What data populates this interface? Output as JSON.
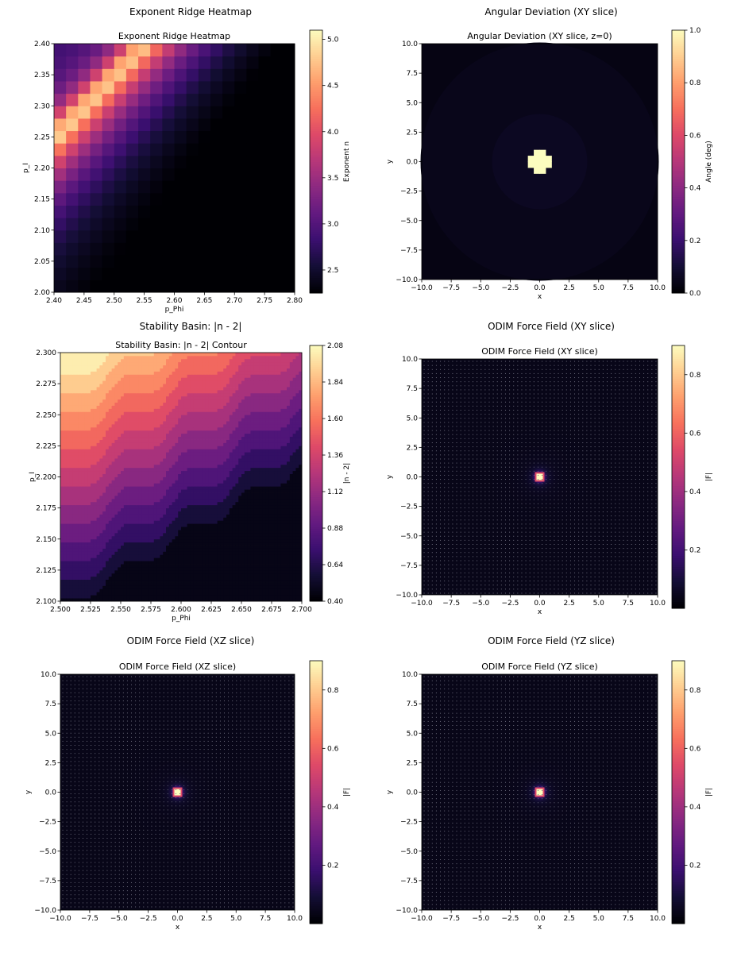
{
  "chart_data": [
    {
      "id": "p0",
      "type": "heatmap",
      "panel_title": "Exponent Ridge Heatmap",
      "title": "Exponent Ridge Heatmap",
      "xlabel": "p_Phi",
      "ylabel": "p_I",
      "xlim": [
        2.4,
        2.8
      ],
      "ylim": [
        2.0,
        2.4
      ],
      "xticks": [
        "2.40",
        "2.45",
        "2.50",
        "2.55",
        "2.60",
        "2.65",
        "2.70",
        "2.75",
        "2.80"
      ],
      "yticks": [
        "2.00",
        "2.05",
        "2.10",
        "2.15",
        "2.20",
        "2.25",
        "2.30",
        "2.35",
        "2.40"
      ],
      "grid": {
        "nx": 20,
        "ny": 20,
        "ridge": "p_I - 2.25 = (p_Phi - 2.40) * 1.0",
        "peak_value": 5.05,
        "min_value": 2.25
      },
      "colorbar": {
        "label": "Exponent n",
        "range": [
          2.25,
          5.1
        ],
        "ticks": [
          "2.5",
          "3.0",
          "3.5",
          "4.0",
          "4.5",
          "5.0"
        ]
      },
      "colormap": "magma"
    },
    {
      "id": "p1",
      "type": "heatmap",
      "panel_title": "Angular Deviation (XY slice)",
      "title": "Angular Deviation (XY slice, z=0)",
      "xlabel": "x",
      "ylabel": "y",
      "xlim": [
        -10,
        10
      ],
      "ylim": [
        -10,
        10
      ],
      "xticks": [
        "−10.0",
        "−7.5",
        "−5.0",
        "−2.5",
        "0.0",
        "2.5",
        "5.0",
        "7.5",
        "10.0"
      ],
      "yticks": [
        "−10.0",
        "−7.5",
        "−5.0",
        "−2.5",
        "0.0",
        "2.5",
        "5.0",
        "7.5",
        "10.0"
      ],
      "grid": {
        "nx": 40,
        "ny": 40,
        "center_value": 1.0,
        "halo_value": 0.03
      },
      "colorbar": {
        "label": "Angle (deg)",
        "range": [
          0,
          1
        ],
        "ticks": [
          "0.0",
          "0.2",
          "0.4",
          "0.6",
          "0.8",
          "1.0"
        ]
      },
      "colormap": "magma"
    },
    {
      "id": "p2",
      "type": "heatmap",
      "panel_title": "Stability Basin: |n - 2|",
      "title": "Stability Basin: |n - 2| Contour",
      "xlabel": "p_Phi",
      "ylabel": "p_I",
      "xlim": [
        2.5,
        2.7
      ],
      "ylim": [
        2.1,
        2.3
      ],
      "xticks": [
        "2.500",
        "2.525",
        "2.550",
        "2.575",
        "2.600",
        "2.625",
        "2.650",
        "2.675",
        "2.700"
      ],
      "yticks": [
        "2.100",
        "2.125",
        "2.150",
        "2.175",
        "2.200",
        "2.225",
        "2.250",
        "2.275",
        "2.300"
      ],
      "levels": [
        0.4,
        0.52,
        0.64,
        0.76,
        0.88,
        1.0,
        1.12,
        1.24,
        1.36,
        1.48,
        1.6,
        1.72,
        1.84,
        1.96,
        2.08
      ],
      "colorbar": {
        "label": "|n - 2|",
        "range": [
          0.4,
          2.08
        ],
        "ticks": [
          "0.40",
          "0.64",
          "0.88",
          "1.12",
          "1.36",
          "1.60",
          "1.84",
          "2.08"
        ]
      },
      "colormap": "magma"
    },
    {
      "id": "p3",
      "type": "heatmap",
      "panel_title": "ODIM Force Field (XY slice)",
      "title": "ODIM Force Field (XY slice)",
      "xlabel": "x",
      "ylabel": "y",
      "xlim": [
        -10,
        10
      ],
      "ylim": [
        -10,
        10
      ],
      "xticks": [
        "−10.0",
        "−7.5",
        "−5.0",
        "−2.5",
        "0.0",
        "2.5",
        "5.0",
        "7.5",
        "10.0"
      ],
      "yticks": [
        "−10.0",
        "−7.5",
        "−5.0",
        "−2.5",
        "0.0",
        "2.5",
        "5.0",
        "7.5",
        "10.0"
      ],
      "grid": {
        "nx": 60,
        "ny": 60,
        "peak_value": 0.9
      },
      "colorbar": {
        "label": "|F|",
        "range": [
          0.0,
          0.9
        ],
        "ticks": [
          "0.2",
          "0.4",
          "0.6",
          "0.8"
        ]
      },
      "colormap": "magma"
    },
    {
      "id": "p4",
      "type": "heatmap",
      "panel_title": "ODIM Force Field (XZ slice)",
      "title": "ODIM Force Field (XZ slice)",
      "xlabel": "x",
      "ylabel": "y",
      "xlim": [
        -10,
        10
      ],
      "ylim": [
        -10,
        10
      ],
      "xticks": [
        "−10.0",
        "−7.5",
        "−5.0",
        "−2.5",
        "0.0",
        "2.5",
        "5.0",
        "7.5",
        "10.0"
      ],
      "yticks": [
        "−10.0",
        "−7.5",
        "−5.0",
        "−2.5",
        "0.0",
        "2.5",
        "5.0",
        "7.5",
        "10.0"
      ],
      "grid": {
        "nx": 60,
        "ny": 60,
        "peak_value": 0.9
      },
      "colorbar": {
        "label": "|F|",
        "range": [
          0.0,
          0.9
        ],
        "ticks": [
          "0.2",
          "0.4",
          "0.6",
          "0.8"
        ]
      },
      "colormap": "magma"
    },
    {
      "id": "p5",
      "type": "heatmap",
      "panel_title": "ODIM Force Field (YZ slice)",
      "title": "ODIM Force Field (YZ slice)",
      "xlabel": "x",
      "ylabel": "y",
      "xlim": [
        -10,
        10
      ],
      "ylim": [
        -10,
        10
      ],
      "xticks": [
        "−10.0",
        "−7.5",
        "−5.0",
        "−2.5",
        "0.0",
        "2.5",
        "5.0",
        "7.5",
        "10.0"
      ],
      "yticks": [
        "−10.0",
        "−7.5",
        "−5.0",
        "−2.5",
        "0.0",
        "2.5",
        "5.0",
        "7.5",
        "10.0"
      ],
      "grid": {
        "nx": 60,
        "ny": 60,
        "peak_value": 0.9
      },
      "colorbar": {
        "label": "|F|",
        "range": [
          0.0,
          0.9
        ],
        "ticks": [
          "0.2",
          "0.4",
          "0.6",
          "0.8"
        ]
      },
      "colormap": "magma"
    }
  ]
}
